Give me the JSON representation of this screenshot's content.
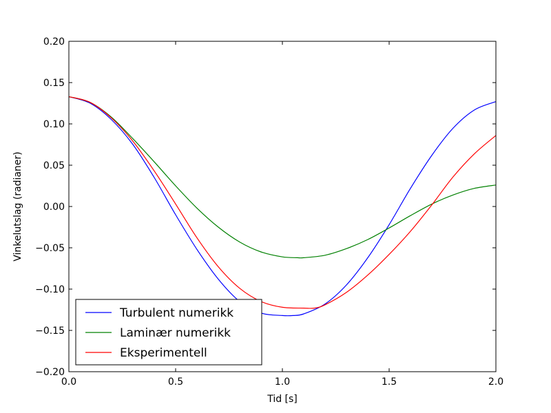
{
  "chart_data": {
    "type": "line",
    "title": "",
    "xlabel": "Tid [s]",
    "ylabel": "Vinkelutslag (radianer)",
    "xlim": [
      0.0,
      2.0
    ],
    "ylim": [
      -0.2,
      0.2
    ],
    "xticks": [
      0.0,
      0.5,
      1.0,
      1.5,
      2.0
    ],
    "xtick_labels": [
      "0.0",
      "0.5",
      "1.0",
      "1.5",
      "2.0"
    ],
    "yticks": [
      0.2,
      0.15,
      0.1,
      0.05,
      0.0,
      -0.05,
      -0.1,
      -0.15,
      -0.2
    ],
    "ytick_labels": [
      "0.20",
      "0.15",
      "0.10",
      "0.05",
      "0.00",
      "−0.05",
      "−0.10",
      "−0.15",
      "−0.20"
    ],
    "grid": false,
    "legend_position": "bottom-left",
    "series": [
      {
        "name": "Turbulent numerikk",
        "color": "#0000ff",
        "x": [
          0.0,
          0.1,
          0.2,
          0.3,
          0.4,
          0.5,
          0.6,
          0.7,
          0.8,
          0.9,
          1.0,
          1.05,
          1.1,
          1.2,
          1.3,
          1.4,
          1.5,
          1.6,
          1.7,
          1.8,
          1.9,
          2.0
        ],
        "y": [
          0.133,
          0.125,
          0.105,
          0.075,
          0.035,
          -0.01,
          -0.052,
          -0.088,
          -0.115,
          -0.129,
          -0.132,
          -0.132,
          -0.13,
          -0.118,
          -0.095,
          -0.062,
          -0.022,
          0.022,
          0.062,
          0.095,
          0.117,
          0.127
        ]
      },
      {
        "name": "Laminær numerikk",
        "color": "#008000",
        "x": [
          0.0,
          0.1,
          0.2,
          0.3,
          0.4,
          0.5,
          0.6,
          0.7,
          0.8,
          0.9,
          1.0,
          1.07,
          1.1,
          1.2,
          1.3,
          1.4,
          1.5,
          1.6,
          1.7,
          1.8,
          1.9,
          2.0
        ],
        "y": [
          0.133,
          0.126,
          0.108,
          0.082,
          0.054,
          0.025,
          -0.002,
          -0.025,
          -0.043,
          -0.055,
          -0.061,
          -0.062,
          -0.062,
          -0.059,
          -0.051,
          -0.04,
          -0.026,
          -0.011,
          0.003,
          0.014,
          0.022,
          0.026
        ]
      },
      {
        "name": "Eksperimentell",
        "color": "#ff0000",
        "x": [
          0.0,
          0.1,
          0.2,
          0.3,
          0.4,
          0.5,
          0.6,
          0.7,
          0.8,
          0.9,
          1.0,
          1.1,
          1.15,
          1.2,
          1.3,
          1.4,
          1.5,
          1.6,
          1.7,
          1.8,
          1.9,
          2.0
        ],
        "y": [
          0.133,
          0.126,
          0.107,
          0.079,
          0.043,
          0.003,
          -0.038,
          -0.073,
          -0.099,
          -0.115,
          -0.122,
          -0.123,
          -0.123,
          -0.119,
          -0.104,
          -0.083,
          -0.058,
          -0.03,
          0.002,
          0.036,
          0.064,
          0.086
        ]
      }
    ]
  }
}
